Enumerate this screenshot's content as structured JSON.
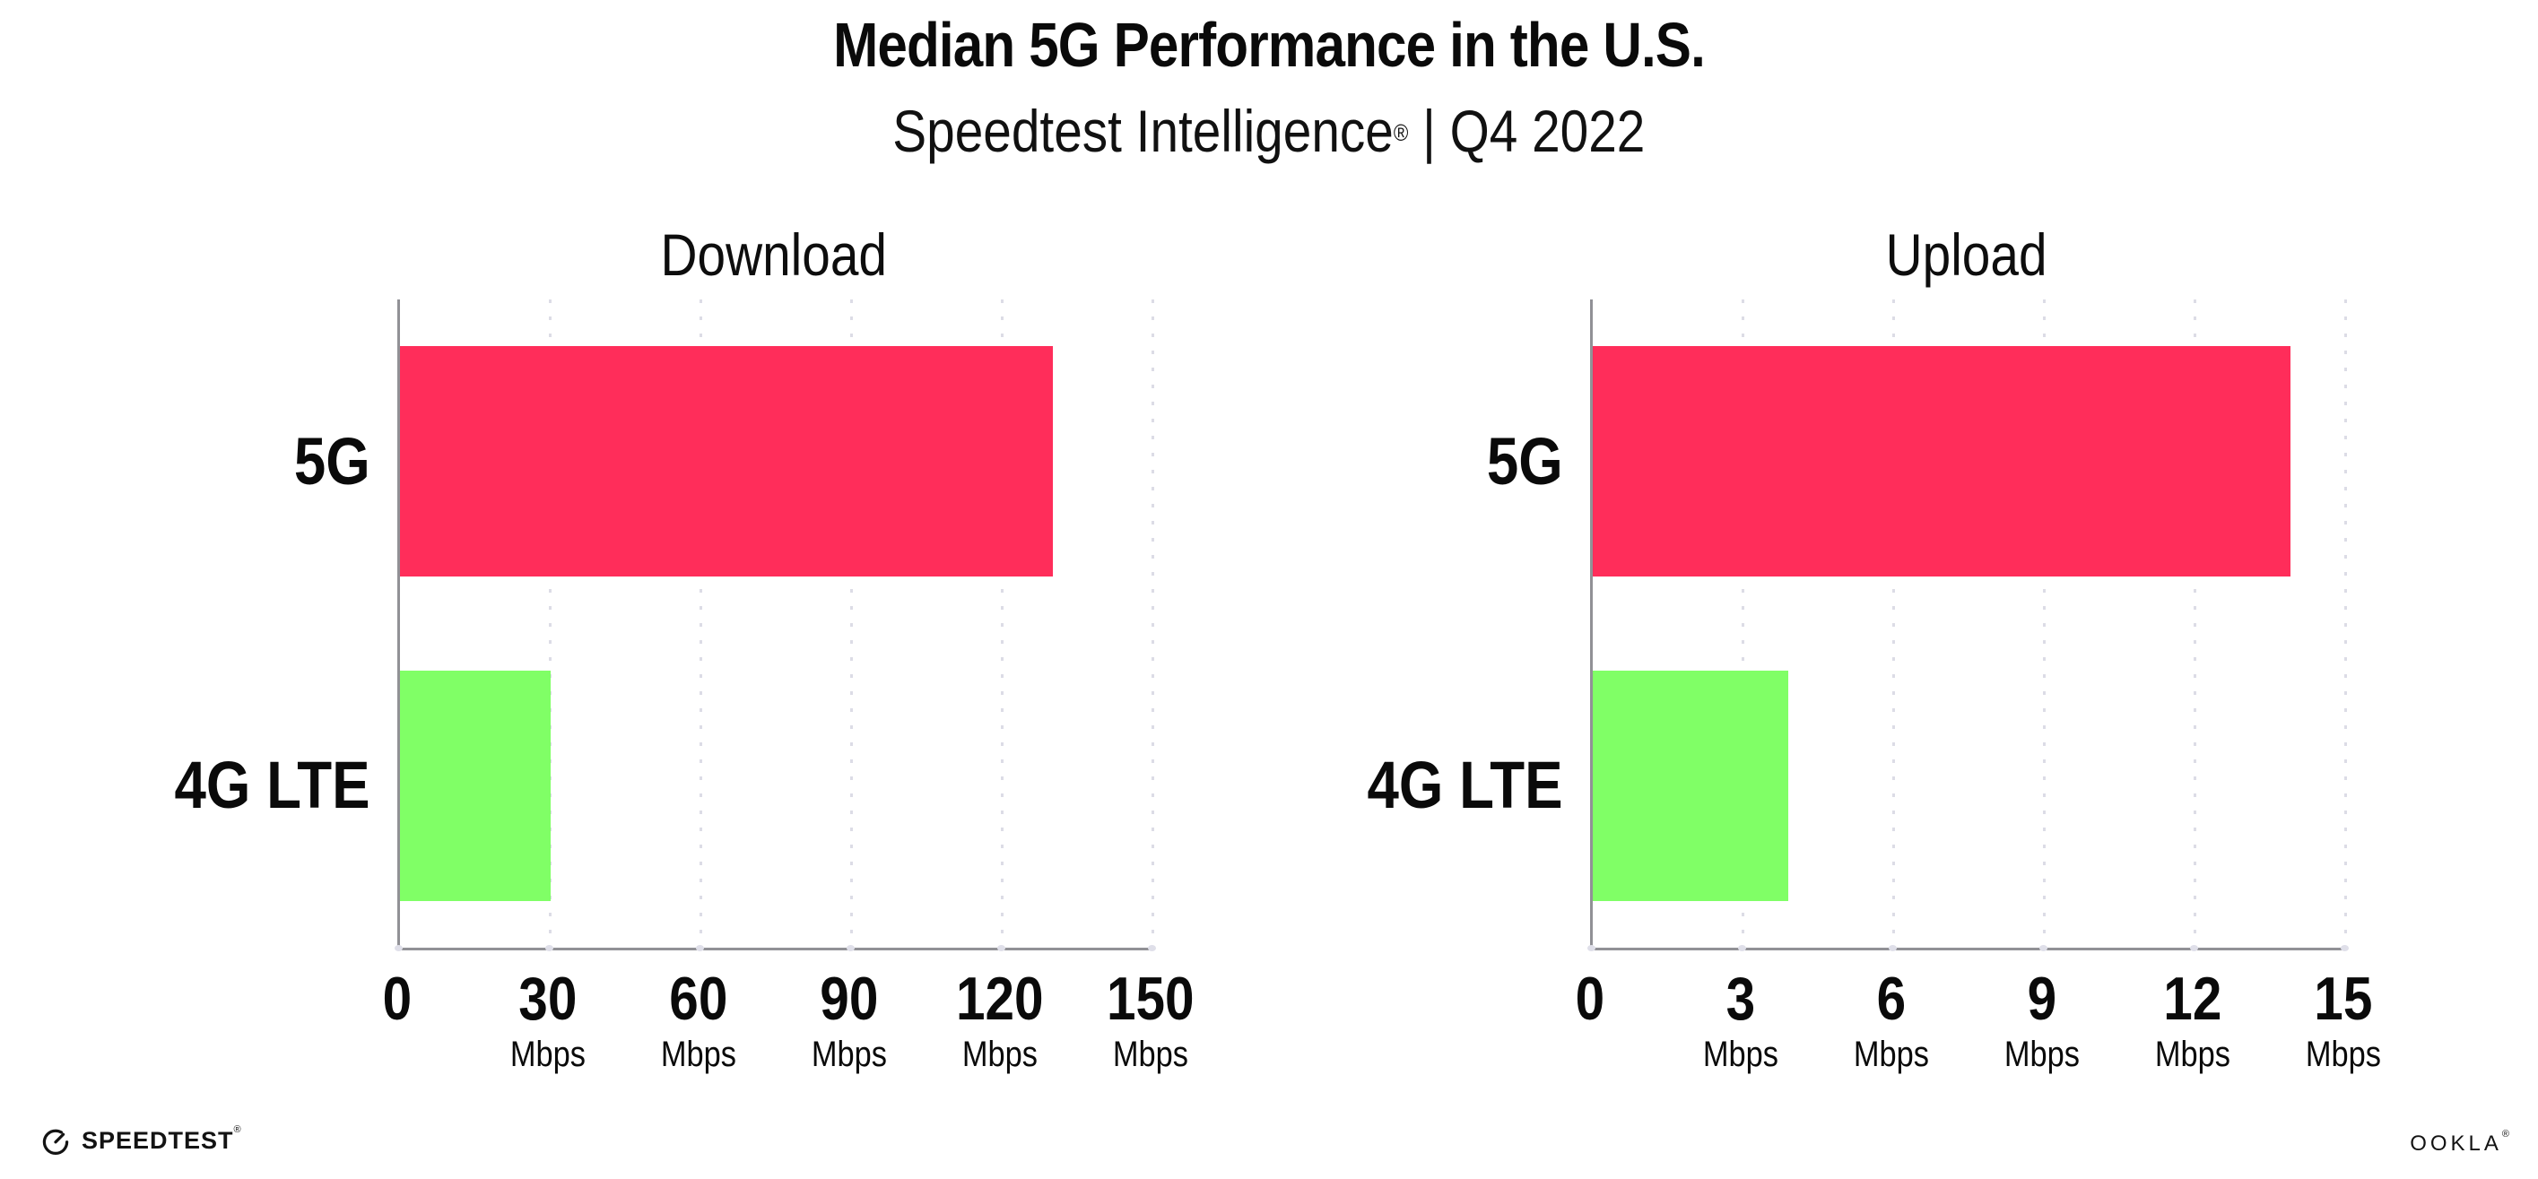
{
  "page": {
    "title": "Median 5G Performance in the U.S.",
    "subtitle_brand": "Speedtest Intelligence",
    "subtitle_reg": "®",
    "subtitle_rest": " | Q4 2022"
  },
  "colors": {
    "bar_5g": "#FF2D5A",
    "bar_4g_lte": "#80FF66",
    "axis": "#919196",
    "gridline_dots": "#DCDCE6",
    "axis_tick_dot": "#DFDFE9",
    "text": "#0A0A0A"
  },
  "chart_data": [
    {
      "type": "bar",
      "orientation": "horizontal",
      "title": "Download",
      "unit": "Mbps",
      "categories": [
        "5G",
        "4G LTE"
      ],
      "values": [
        130,
        30
      ],
      "xlim": [
        0,
        150
      ],
      "ticks": [
        0,
        30,
        60,
        90,
        120,
        150
      ],
      "tick_labels": [
        {
          "label": "0",
          "unit": ""
        },
        {
          "label": "30",
          "unit": "Mbps"
        },
        {
          "label": "60",
          "unit": "Mbps"
        },
        {
          "label": "90",
          "unit": "Mbps"
        },
        {
          "label": "120",
          "unit": "Mbps"
        },
        {
          "label": "150",
          "unit": "Mbps"
        }
      ],
      "bar_colors": [
        "#FF2D5A",
        "#80FF66"
      ],
      "grid": "dotted-vertical",
      "legend": "none"
    },
    {
      "type": "bar",
      "orientation": "horizontal",
      "title": "Upload",
      "unit": "Mbps",
      "categories": [
        "5G",
        "4G LTE"
      ],
      "values": [
        13.9,
        3.9
      ],
      "xlim": [
        0,
        15
      ],
      "ticks": [
        0,
        3,
        6,
        9,
        12,
        15
      ],
      "tick_labels": [
        {
          "label": "0",
          "unit": ""
        },
        {
          "label": "3",
          "unit": "Mbps"
        },
        {
          "label": "6",
          "unit": "Mbps"
        },
        {
          "label": "9",
          "unit": "Mbps"
        },
        {
          "label": "12",
          "unit": "Mbps"
        },
        {
          "label": "15",
          "unit": "Mbps"
        }
      ],
      "bar_colors": [
        "#FF2D5A",
        "#80FF66"
      ],
      "grid": "dotted-vertical",
      "legend": "none"
    }
  ],
  "footer": {
    "speedtest_label": "SPEEDTEST",
    "speedtest_reg": "®",
    "ookla_label": "OOKLA",
    "ookla_reg": "®"
  }
}
